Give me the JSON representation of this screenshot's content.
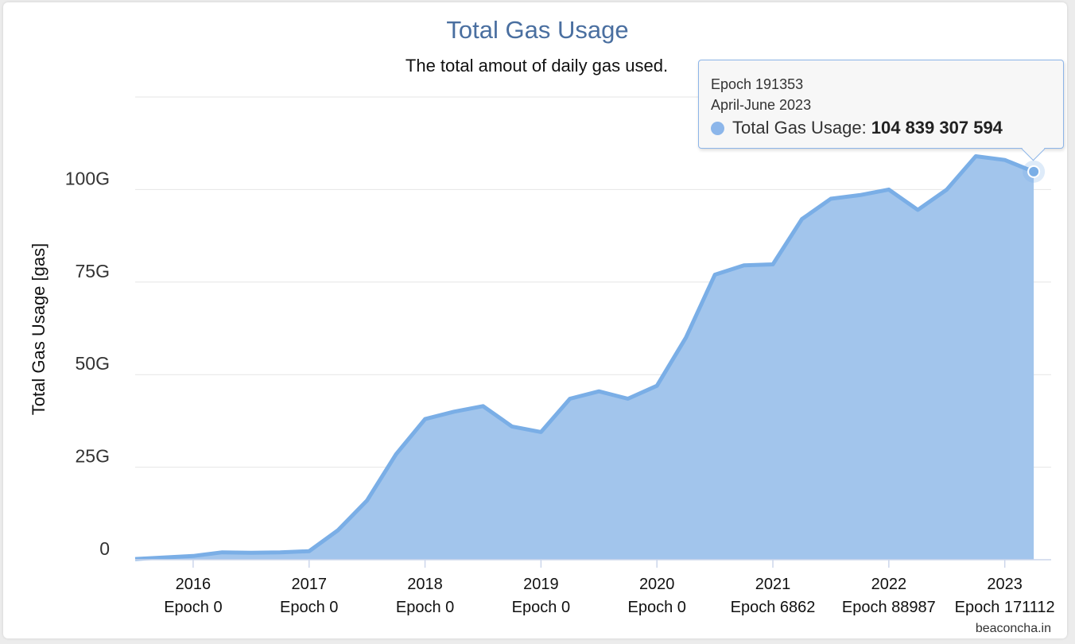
{
  "colors": {
    "accent": "#7aaee6",
    "fill": "#a2c5ec",
    "title": "#4a6fa0",
    "grid": "#e6e6e6"
  },
  "tooltip": {
    "epoch": "Epoch 191353",
    "period": "April-June 2023",
    "series_name": "Total Gas Usage:",
    "value": "104 839 307 594"
  },
  "credit": "beaconcha.in",
  "chart_data": {
    "type": "area",
    "title": "Total Gas Usage",
    "subtitle": "The total amout of daily gas used.",
    "ylabel": "Total Gas Usage [gas]",
    "ylim": [
      0,
      125000000000
    ],
    "yticks": [
      {
        "value": 0,
        "label": "0"
      },
      {
        "value": 25000000000,
        "label": "25G"
      },
      {
        "value": 50000000000,
        "label": "50G"
      },
      {
        "value": 75000000000,
        "label": "75G"
      },
      {
        "value": 100000000000,
        "label": "100G"
      }
    ],
    "xlim": [
      2015.5,
      2023.4
    ],
    "xticks": [
      {
        "value": 2016,
        "year": "2016",
        "epoch": "Epoch 0"
      },
      {
        "value": 2017,
        "year": "2017",
        "epoch": "Epoch 0"
      },
      {
        "value": 2018,
        "year": "2018",
        "epoch": "Epoch 0"
      },
      {
        "value": 2019,
        "year": "2019",
        "epoch": "Epoch 0"
      },
      {
        "value": 2020,
        "year": "2020",
        "epoch": "Epoch 0"
      },
      {
        "value": 2021,
        "year": "2021",
        "epoch": "Epoch 6862"
      },
      {
        "value": 2022,
        "year": "2022",
        "epoch": "Epoch 88987"
      },
      {
        "value": 2023,
        "year": "2023",
        "epoch": "Epoch 171112"
      }
    ],
    "grid": true,
    "series": [
      {
        "x": [
          2015.5,
          2016.0,
          2016.25,
          2016.5,
          2016.75,
          2017.0,
          2017.25,
          2017.5,
          2017.75,
          2018.0,
          2018.25,
          2018.5,
          2018.75,
          2019.0,
          2019.25,
          2019.5,
          2019.75,
          2020.0,
          2020.25,
          2020.5,
          2020.75,
          2021.0,
          2021.25,
          2021.5,
          2021.75,
          2022.0,
          2022.25,
          2022.5,
          2022.75,
          2023.0,
          2023.25
        ],
        "values": [
          200000000,
          1000000000,
          2000000000,
          1900000000,
          2000000000,
          2300000000,
          8000000000,
          16000000000,
          28500000000,
          38000000000,
          40000000000,
          41500000000,
          36000000000,
          34500000000,
          43500000000,
          45500000000,
          43500000000,
          47000000000,
          60000000000,
          77000000000,
          79500000000,
          79800000000,
          92000000000,
          97500000000,
          98500000000,
          100000000000,
          94500000000,
          100000000000,
          109000000000,
          108000000000,
          104839307594
        ]
      }
    ]
  }
}
